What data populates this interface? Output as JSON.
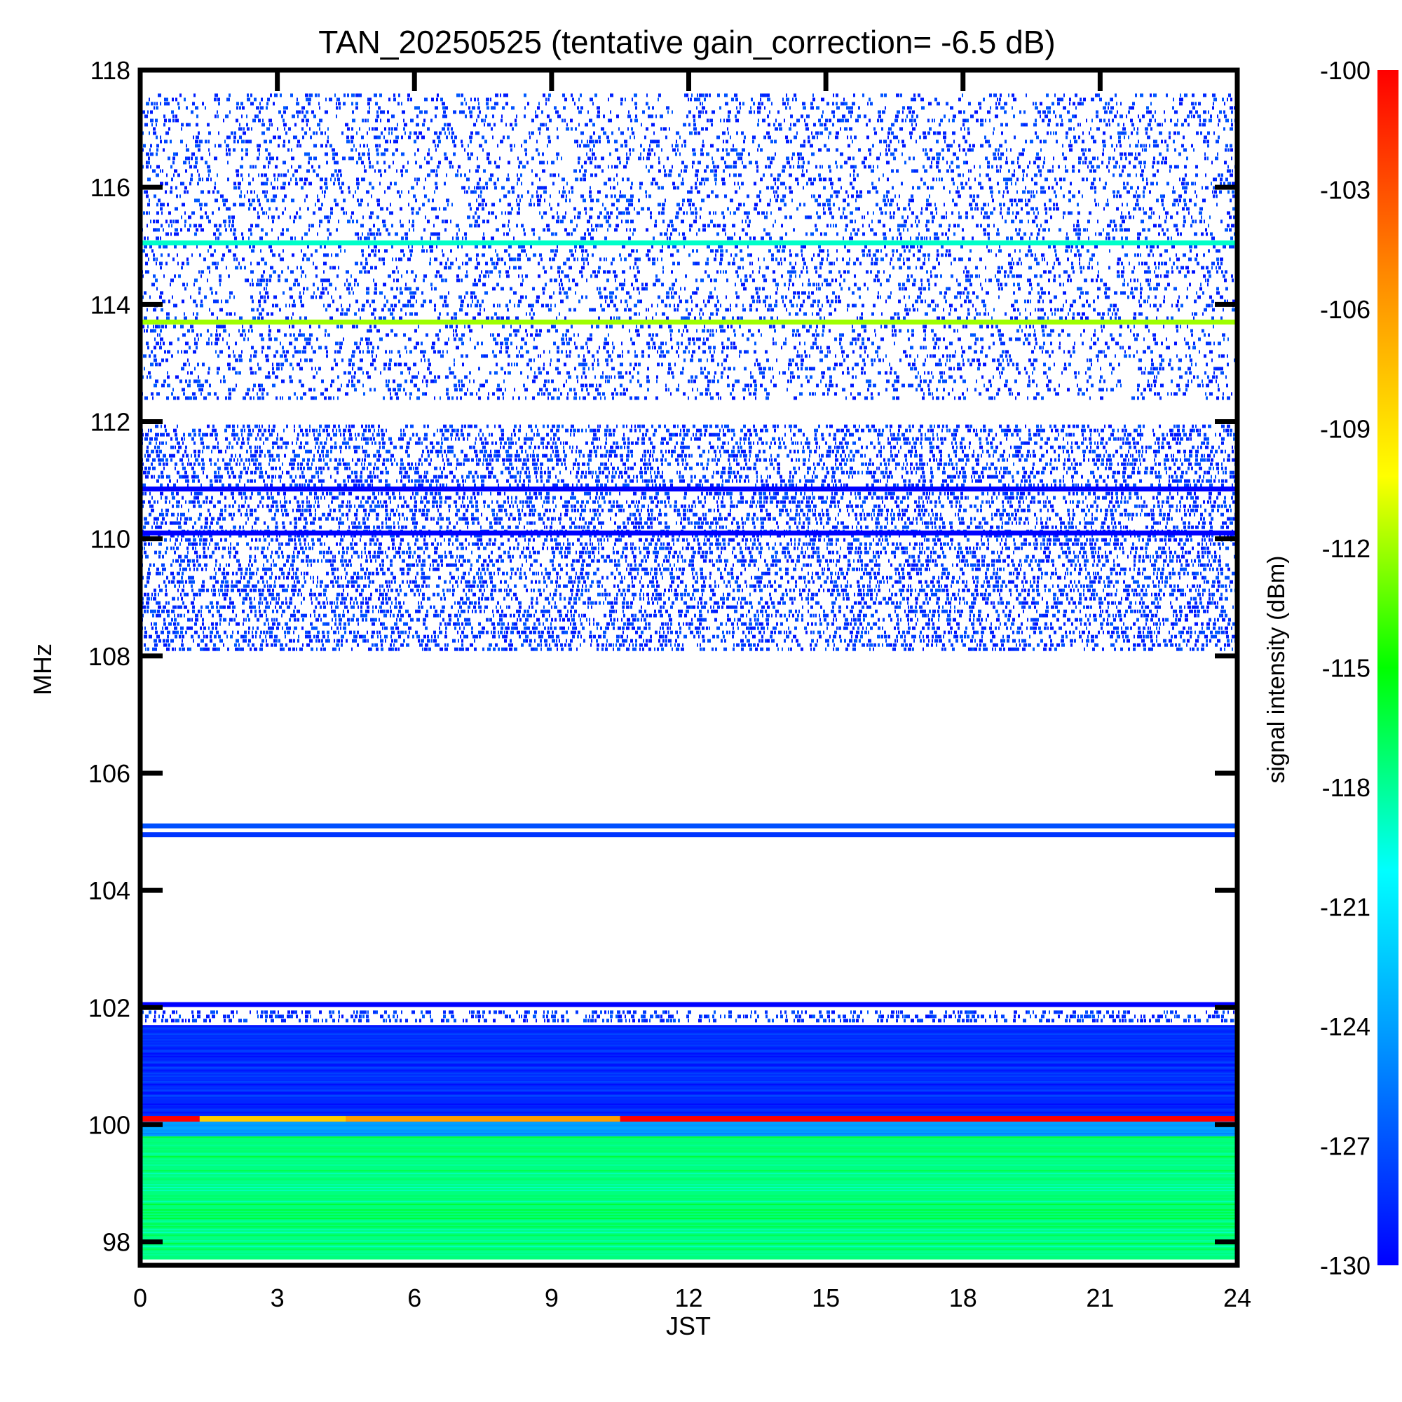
{
  "chart_data": {
    "type": "heatmap",
    "title": "TAN_20250525 (tentative gain_correction= -6.5 dB)",
    "xlabel": "JST",
    "ylabel": "MHz",
    "xlim": [
      0,
      24
    ],
    "ylim": [
      97.6,
      118
    ],
    "x_ticks": [
      0,
      3,
      6,
      9,
      12,
      15,
      18,
      21,
      24
    ],
    "y_ticks": [
      98,
      100,
      102,
      104,
      106,
      108,
      110,
      112,
      114,
      116,
      118
    ],
    "colorbar": {
      "label": "signal intensity (dBm)",
      "range": [
        -130,
        -100
      ],
      "ticks": [
        -100,
        -103,
        -106,
        -109,
        -112,
        -115,
        -118,
        -121,
        -124,
        -127,
        -130
      ],
      "colormap": "rainbow"
    },
    "bands": [
      {
        "from": 97.7,
        "to": 99.8,
        "intensity": -117.5,
        "texture": "dense"
      },
      {
        "from": 99.8,
        "to": 100.05,
        "intensity": -124,
        "texture": "dense"
      },
      {
        "from": 100.05,
        "to": 101.7,
        "intensity": -128.5,
        "texture": "dense"
      },
      {
        "from": 101.7,
        "to": 101.95,
        "intensity": -129.5,
        "texture": "speckle"
      },
      {
        "from": 108.05,
        "to": 111.95,
        "intensity": -129.5,
        "texture": "speckle"
      },
      {
        "from": 112.3,
        "to": 117.6,
        "intensity": -129.5,
        "texture": "sparse"
      }
    ],
    "lines": [
      {
        "freq": 100.1,
        "intensity": -100,
        "segments": [
          {
            "from": 0,
            "to": 1.3,
            "intensity": -100
          },
          {
            "from": 1.3,
            "to": 4.5,
            "intensity": -108
          },
          {
            "from": 4.5,
            "to": 10.5,
            "intensity": -106
          },
          {
            "from": 10.5,
            "to": 24,
            "intensity": -100
          }
        ]
      },
      {
        "freq": 102.05,
        "intensity": -130
      },
      {
        "freq": 104.95,
        "intensity": -128
      },
      {
        "freq": 105.1,
        "intensity": -127
      },
      {
        "freq": 110.1,
        "intensity": -130
      },
      {
        "freq": 110.85,
        "intensity": -130
      },
      {
        "freq": 113.7,
        "intensity": -112
      },
      {
        "freq": 115.05,
        "intensity": -119
      }
    ],
    "grid": false,
    "legend": "colorbar-right"
  }
}
